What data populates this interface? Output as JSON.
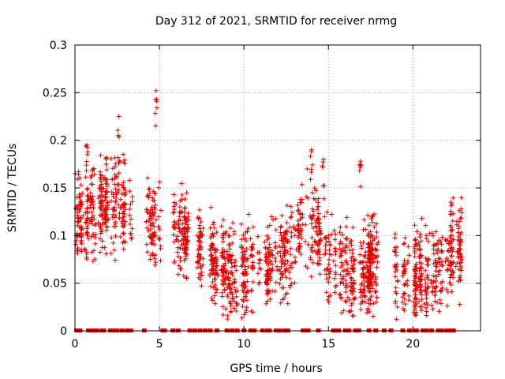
{
  "chart_data": {
    "type": "scatter",
    "title": "Day 312 of 2021, SRMTID for receiver nrmg",
    "xlabel": "GPS time / hours",
    "ylabel": "SRMTID / TECUs",
    "xlim": [
      0,
      24
    ],
    "ylim": [
      0,
      0.3
    ],
    "x_ticks": [
      0,
      5,
      10,
      15,
      20
    ],
    "y_ticks": [
      0,
      0.05,
      0.1,
      0.15,
      0.2,
      0.25,
      0.3
    ],
    "x_tick_labels": [
      "0",
      "5",
      "10",
      "15",
      "20"
    ],
    "y_tick_labels": [
      "0",
      "0.05",
      "0.1",
      "0.15",
      "0.2",
      "0.25",
      "0.3"
    ],
    "grid": true,
    "marker": "+",
    "series": [
      {
        "name": "SRMTID",
        "color": "#e00000",
        "approx_hourly_mean": [
          {
            "x": 0.5,
            "y": 0.12
          },
          {
            "x": 1.5,
            "y": 0.13
          },
          {
            "x": 2.5,
            "y": 0.14
          },
          {
            "x": 3.5,
            "y": 0.12
          },
          {
            "x": 4.5,
            "y": 0.11
          },
          {
            "x": 5.5,
            "y": 0.12
          },
          {
            "x": 6.5,
            "y": 0.1
          },
          {
            "x": 7.5,
            "y": 0.08
          },
          {
            "x": 8.5,
            "y": 0.07
          },
          {
            "x": 9.5,
            "y": 0.05
          },
          {
            "x": 10.5,
            "y": 0.07
          },
          {
            "x": 11.5,
            "y": 0.07
          },
          {
            "x": 12.5,
            "y": 0.08
          },
          {
            "x": 13.5,
            "y": 0.12
          },
          {
            "x": 14.5,
            "y": 0.1
          },
          {
            "x": 15.5,
            "y": 0.07
          },
          {
            "x": 16.5,
            "y": 0.06
          },
          {
            "x": 17.5,
            "y": 0.07
          },
          {
            "x": 18.5,
            "y": 0.07
          },
          {
            "x": 19.5,
            "y": 0.05
          },
          {
            "x": 20.5,
            "y": 0.06
          },
          {
            "x": 21.5,
            "y": 0.06
          },
          {
            "x": 22.5,
            "y": 0.09
          }
        ],
        "notable_points": [
          {
            "x": 0.7,
            "y": 0.195
          },
          {
            "x": 2.6,
            "y": 0.225
          },
          {
            "x": 4.8,
            "y": 0.252
          },
          {
            "x": 14.0,
            "y": 0.19
          },
          {
            "x": 14.7,
            "y": 0.18
          },
          {
            "x": 16.9,
            "y": 0.178
          },
          {
            "x": 22.6,
            "y": 0.115
          }
        ],
        "zero_markers_x": [
          0.1,
          0.2,
          0.3,
          0.8,
          0.9,
          1.1,
          1.3,
          1.6,
          1.7,
          2.1,
          2.3,
          2.5,
          2.8,
          3.1,
          3.3,
          4.1,
          5.2,
          5.3,
          5.8,
          6.1,
          6.8,
          7.1,
          7.4,
          7.7,
          8.0,
          8.4,
          9.0,
          9.3,
          9.6,
          10.0,
          10.4,
          10.5,
          10.6,
          11.1,
          11.4,
          11.5,
          11.9,
          12.1,
          12.4,
          12.6,
          13.5,
          13.6,
          13.8,
          14.4,
          15.3,
          15.5,
          15.6,
          16.0,
          16.1,
          16.2,
          16.6,
          16.8,
          17.4,
          17.8,
          18.3,
          18.7,
          19.4,
          19.8,
          20.1,
          20.2,
          20.6,
          20.8,
          21.1,
          21.5,
          21.7,
          22.0,
          22.2,
          22.4
        ]
      }
    ]
  }
}
